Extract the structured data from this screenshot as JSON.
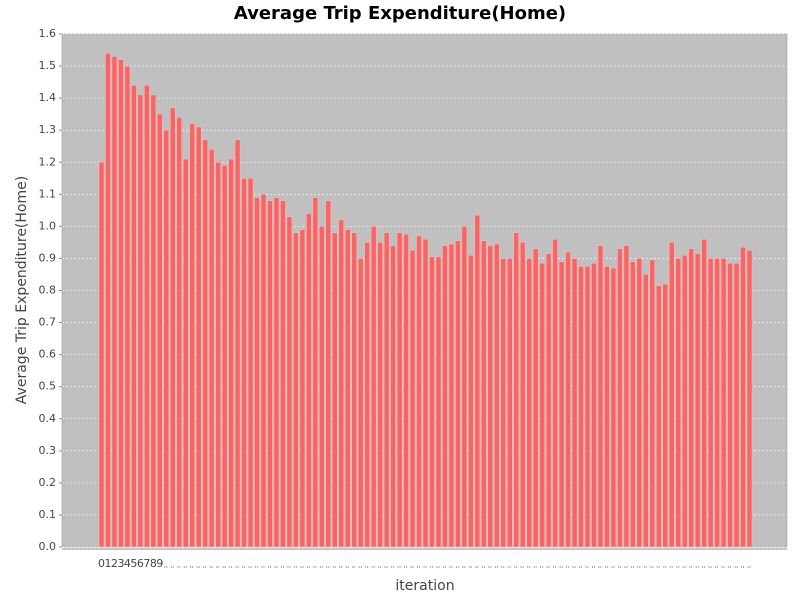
{
  "chart_data": {
    "type": "bar",
    "title": "Average Trip Expenditure(Home)",
    "x_label": "iteration",
    "y_label": "Average Trip Expenditure(Home)",
    "color": "#f76565",
    "background": "#c0c0c0",
    "grid": true,
    "ylim": [
      0,
      1.6
    ],
    "yticks": [
      {
        "value": 0,
        "label": "0.0"
      },
      0.1,
      0.2,
      0.3,
      0.4,
      0.5,
      0.6,
      0.7,
      0.8,
      0.9,
      {
        "value": 1,
        "label": "1.0"
      },
      1.1,
      1.2,
      1.3,
      1.4,
      1.5,
      1.6
    ],
    "categories": [
      "0",
      "1",
      "2",
      "3",
      "4",
      "5",
      "6",
      "7",
      "8",
      "9",
      null,
      null,
      null,
      null,
      null,
      null,
      null,
      null,
      null,
      null,
      null,
      null,
      null,
      null,
      null,
      null,
      null,
      null,
      null,
      null,
      null,
      null,
      null,
      null,
      null,
      null,
      null,
      null,
      null,
      null,
      null,
      null,
      null,
      null,
      null,
      null,
      null,
      null,
      null,
      null,
      null,
      null,
      null,
      null,
      null,
      null,
      null,
      null,
      null,
      null,
      null,
      null,
      null,
      null,
      null,
      null,
      null,
      null,
      null,
      null,
      null,
      null,
      null,
      null,
      null,
      null,
      null,
      null,
      null,
      null,
      null,
      null,
      null,
      null,
      null,
      null,
      null,
      null,
      null,
      null,
      null,
      null,
      null,
      null,
      null,
      null,
      null,
      null,
      null,
      null,
      null
    ],
    "values": [
      1.2,
      1.54,
      1.53,
      1.52,
      1.5,
      1.44,
      1.41,
      1.44,
      1.41,
      1.35,
      1.3,
      1.37,
      1.34,
      1.21,
      1.32,
      1.31,
      1.27,
      1.24,
      1.2,
      1.19,
      1.21,
      1.27,
      1.15,
      1.15,
      1.09,
      1.1,
      1.08,
      1.09,
      1.08,
      1.03,
      0.98,
      0.99,
      1.04,
      1.09,
      1.0,
      1.08,
      0.98,
      1.02,
      0.99,
      0.98,
      0.9,
      0.95,
      1.0,
      0.95,
      0.98,
      0.94,
      0.98,
      0.975,
      0.925,
      0.97,
      0.96,
      0.905,
      0.905,
      0.94,
      0.945,
      0.955,
      1.0,
      0.91,
      1.035,
      0.955,
      0.94,
      0.945,
      0.9,
      0.9,
      0.98,
      0.95,
      0.9,
      0.93,
      0.885,
      0.915,
      0.96,
      0.89,
      0.92,
      0.9,
      0.875,
      0.875,
      0.885,
      0.94,
      0.875,
      0.87,
      0.93,
      0.94,
      0.89,
      0.9,
      0.85,
      0.895,
      0.815,
      0.82,
      0.95,
      0.9,
      0.91,
      0.93,
      0.915,
      0.96,
      0.9,
      0.9,
      0.9,
      0.885,
      0.885,
      0.935,
      0.925
    ]
  }
}
